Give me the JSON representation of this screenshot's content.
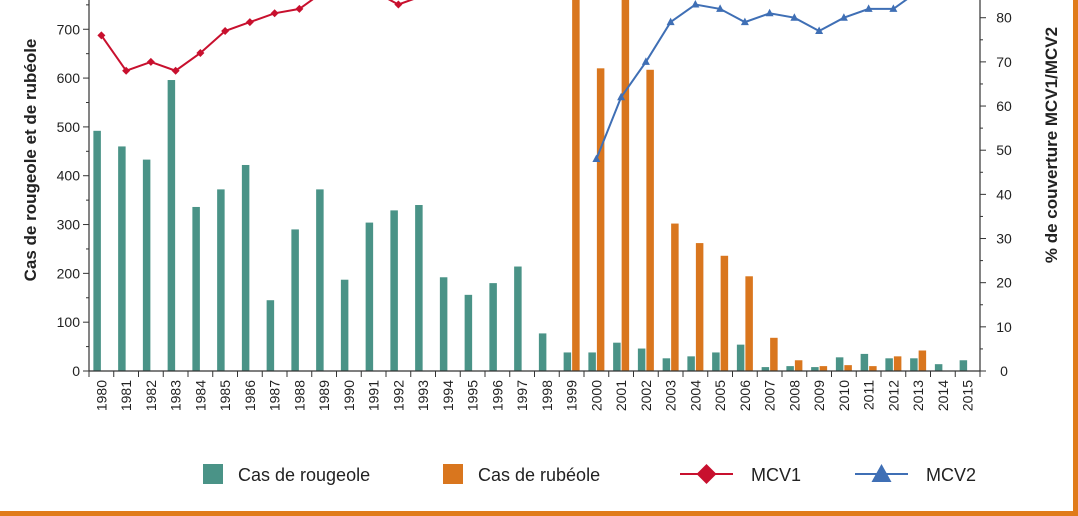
{
  "chart_data": {
    "type": "bar",
    "categories": [
      "1980",
      "1981",
      "1982",
      "1983",
      "1984",
      "1985",
      "1986",
      "1987",
      "1988",
      "1989",
      "1990",
      "1991",
      "1992",
      "1993",
      "1994",
      "1995",
      "1996",
      "1997",
      "1998",
      "1999",
      "2000",
      "2001",
      "2002",
      "2003",
      "2004",
      "2005",
      "2006",
      "2007",
      "2008",
      "2009",
      "2010",
      "2011",
      "2012",
      "2013",
      "2014",
      "2015"
    ],
    "series": [
      {
        "name": "Cas de rougeole",
        "kind": "bar",
        "axis": "left",
        "color": "#4a9387",
        "values": [
          492,
          460,
          433,
          596,
          336,
          372,
          422,
          145,
          290,
          372,
          187,
          304,
          329,
          340,
          192,
          156,
          180,
          214,
          77,
          38,
          38,
          58,
          46,
          26,
          30,
          38,
          54,
          8,
          10,
          8,
          28,
          35,
          26,
          26,
          14,
          22
        ]
      },
      {
        "name": "Cas de rubéole",
        "kind": "bar",
        "axis": "left",
        "color": "#d9761e",
        "values": [
          null,
          null,
          null,
          null,
          null,
          null,
          null,
          null,
          null,
          null,
          null,
          null,
          null,
          null,
          null,
          null,
          null,
          null,
          null,
          800,
          620,
          800,
          617,
          302,
          262,
          236,
          194,
          68,
          22,
          10,
          12,
          10,
          30,
          42,
          null,
          null
        ]
      },
      {
        "name": "MCV1",
        "kind": "line",
        "axis": "right",
        "color": "#c8102e",
        "marker": "diamond",
        "values": [
          76,
          68,
          70,
          68,
          72,
          77,
          79,
          81,
          82,
          86,
          88,
          86,
          83,
          85,
          null,
          null,
          null,
          null,
          null,
          null,
          null,
          null,
          null,
          null,
          null,
          null,
          null,
          null,
          null,
          null,
          null,
          null,
          null,
          null,
          null,
          null
        ]
      },
      {
        "name": "MCV2",
        "kind": "line",
        "axis": "right",
        "color": "#3f6fb5",
        "marker": "triangle",
        "values": [
          null,
          null,
          null,
          null,
          null,
          null,
          null,
          null,
          null,
          null,
          null,
          null,
          null,
          null,
          null,
          null,
          null,
          null,
          null,
          null,
          48,
          62,
          70,
          79,
          83,
          82,
          79,
          81,
          80,
          77,
          80,
          82,
          82,
          86,
          null,
          null
        ]
      }
    ],
    "ylabel": "Cas de rougeole et de rubéole",
    "y2label": "% de couverture MCV1/MCV2",
    "ylim": [
      0,
      760
    ],
    "y2lim": [
      0,
      86
    ],
    "yticks": [
      0,
      100,
      200,
      300,
      400,
      500,
      600,
      700
    ],
    "y2ticks": [
      0,
      10,
      20,
      30,
      40,
      50,
      60,
      70,
      80
    ],
    "grid": false,
    "legend_position": "bottom"
  }
}
